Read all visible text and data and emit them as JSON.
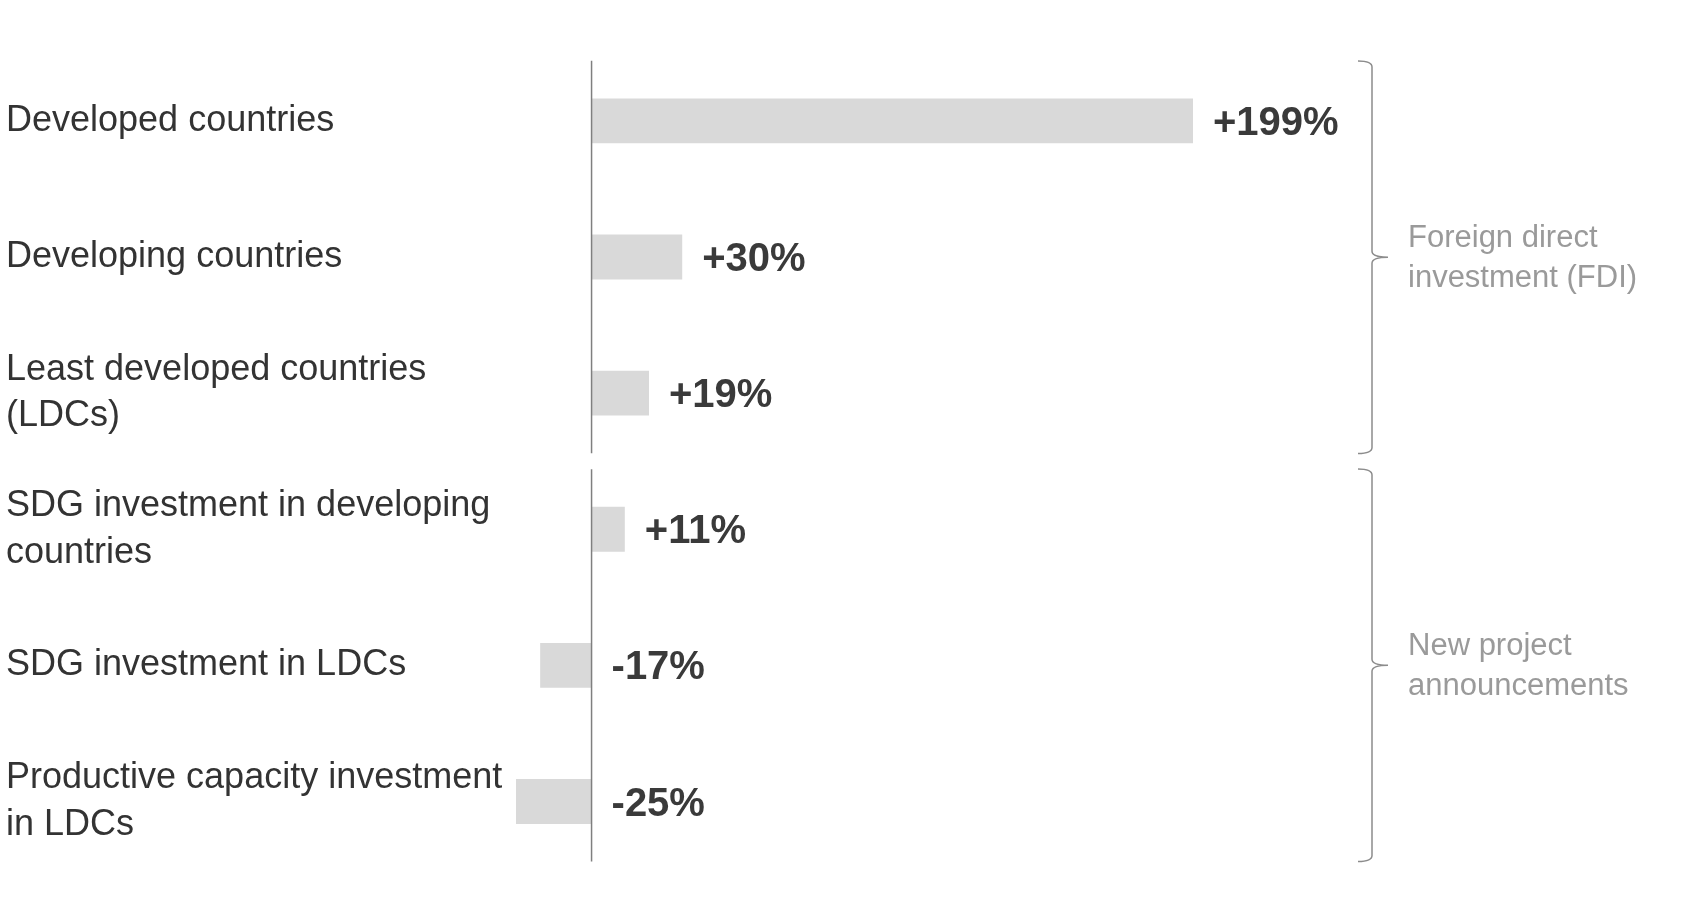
{
  "chart_data": {
    "type": "bar",
    "orientation": "horizontal",
    "categories": [
      "Developed countries",
      "Developing countries",
      "Least developed countries (LDCs)",
      "SDG investment in developing countries",
      "SDG investment in LDCs",
      "Productive capacity investment in LDCs"
    ],
    "values": [
      199,
      30,
      19,
      11,
      -17,
      -25
    ],
    "color": "#d9d9d9",
    "value_labels": [
      "+199%",
      "+30%",
      "+19%",
      "+11%",
      "-17%",
      "-25%"
    ],
    "annotations": [
      "Foreign direct investment (FDI)",
      "New project announcements"
    ],
    "legend": false
  }
}
